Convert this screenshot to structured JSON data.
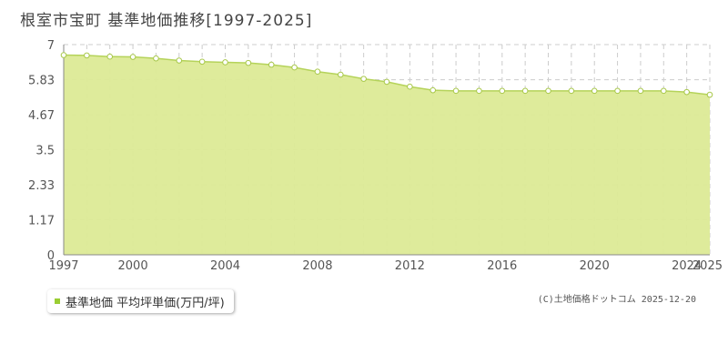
{
  "title": "根室市宝町 基準地価推移[1997-2025]",
  "legend": {
    "label": "基準地価 平均坪単価(万円/坪)"
  },
  "copyright": "(C)土地価格ドットコム 2025-12-20",
  "colors": {
    "fill": "#dcea96",
    "line": "#b5d35a",
    "marker_fill": "#ffffff",
    "marker_stroke": "#a8c84a",
    "legend_marker": "#9acd32"
  },
  "chart_data": {
    "type": "area",
    "title": "根室市宝町 基準地価推移[1997-2025]",
    "xlabel": "",
    "ylabel": "",
    "ylim": [
      0,
      7
    ],
    "yticks": [
      "0",
      "1.17",
      "2.33",
      "3.5",
      "4.67",
      "5.83",
      "7"
    ],
    "xticks": [
      "1997",
      "2000",
      "2004",
      "2008",
      "2012",
      "2016",
      "2020",
      "2024",
      "2025"
    ],
    "xlim": [
      1997,
      2025
    ],
    "grid": true,
    "legend_position": "bottom-left",
    "series": [
      {
        "name": "基準地価 平均坪単価(万円/坪)",
        "x": [
          1997,
          1998,
          1999,
          2000,
          2001,
          2002,
          2003,
          2004,
          2005,
          2006,
          2007,
          2008,
          2009,
          2010,
          2011,
          2012,
          2013,
          2014,
          2015,
          2016,
          2017,
          2018,
          2019,
          2020,
          2021,
          2022,
          2023,
          2024,
          2025
        ],
        "values": [
          6.65,
          6.64,
          6.6,
          6.59,
          6.54,
          6.47,
          6.43,
          6.41,
          6.39,
          6.33,
          6.24,
          6.1,
          6.0,
          5.86,
          5.76,
          5.6,
          5.48,
          5.46,
          5.46,
          5.46,
          5.46,
          5.46,
          5.46,
          5.46,
          5.46,
          5.46,
          5.46,
          5.42,
          5.33
        ]
      }
    ]
  }
}
